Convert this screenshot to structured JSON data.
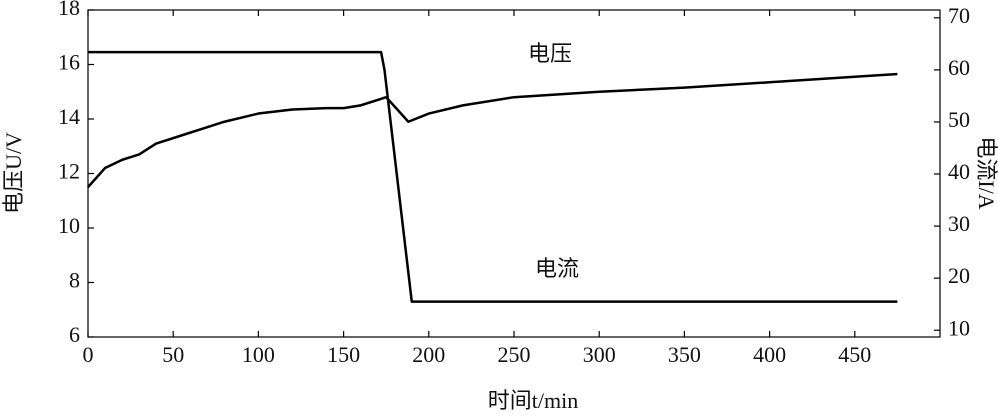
{
  "chart_data": {
    "type": "line",
    "xlabel": "时间t/min",
    "ylabel": "电压U/V",
    "y2label": "电流I/A",
    "xlim": [
      0,
      500
    ],
    "xticks": [
      0,
      50,
      100,
      150,
      200,
      250,
      300,
      350,
      400,
      450
    ],
    "ylim": [
      6,
      18
    ],
    "yticks": [
      6,
      8,
      10,
      12,
      14,
      16,
      18
    ],
    "y2lim": [
      8.7,
      71.5
    ],
    "y2ticks": [
      10,
      20,
      30,
      40,
      50,
      60,
      70
    ],
    "series": [
      {
        "name": "电压",
        "color": "#000000",
        "x": [
          0,
          10,
          20,
          30,
          40,
          60,
          80,
          100,
          120,
          140,
          150,
          160,
          175,
          188,
          200,
          220,
          250,
          300,
          350,
          400,
          450,
          475
        ],
        "values": [
          11.5,
          12.2,
          12.5,
          12.7,
          13.1,
          13.5,
          13.9,
          14.2,
          14.35,
          14.4,
          14.4,
          14.5,
          14.8,
          13.9,
          14.2,
          14.5,
          14.8,
          15.0,
          15.15,
          15.35,
          15.55,
          15.65
        ]
      },
      {
        "name": "电流",
        "color": "#000000",
        "axis": "y2",
        "x": [
          0,
          172,
          174,
          190,
          475
        ],
        "values": [
          63.4,
          63.4,
          60,
          15.5,
          15.5
        ]
      }
    ]
  }
}
